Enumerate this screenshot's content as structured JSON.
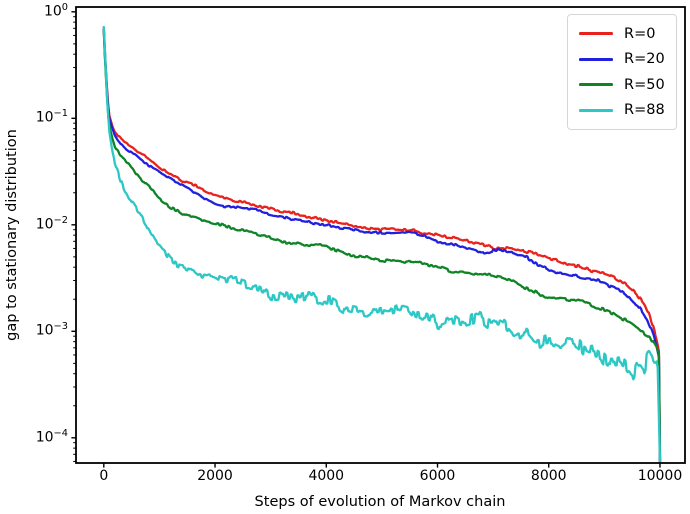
{
  "chart_data": {
    "type": "line",
    "title": "",
    "xlabel": "Steps of evolution of Markov chain",
    "ylabel": "gap to stationary distribution",
    "x_scale": "linear",
    "y_scale": "log",
    "xlim": [
      -500,
      10450
    ],
    "ylim": [
      5.8e-05,
      1.11
    ],
    "grid": false,
    "legend_position": "upper right",
    "xticks": [
      {
        "label": "0",
        "value": 0
      },
      {
        "label": "2000",
        "value": 2000
      },
      {
        "label": "4000",
        "value": 4000
      },
      {
        "label": "6000",
        "value": 6000
      },
      {
        "label": "8000",
        "value": 8000
      },
      {
        "label": "10000",
        "value": 10000
      }
    ],
    "yticks": [
      {
        "base": "10",
        "exp": "0",
        "value": 1
      },
      {
        "base": "10",
        "exp": "−1",
        "value": 0.1
      },
      {
        "base": "10",
        "exp": "−2",
        "value": 0.01
      },
      {
        "base": "10",
        "exp": "−3",
        "value": 0.001
      },
      {
        "base": "10",
        "exp": "−4",
        "value": 0.0001
      }
    ],
    "series": [
      {
        "name": "R=0",
        "key": "r0",
        "color": "#e8231d",
        "noise": [
          0.01,
          0.018
        ],
        "points": [
          [
            0,
            0.7
          ],
          [
            20,
            0.42
          ],
          [
            50,
            0.22
          ],
          [
            80,
            0.13
          ],
          [
            100,
            0.105
          ],
          [
            150,
            0.085
          ],
          [
            200,
            0.074
          ],
          [
            300,
            0.064
          ],
          [
            400,
            0.058
          ],
          [
            500,
            0.054
          ],
          [
            600,
            0.049
          ],
          [
            700,
            0.046
          ],
          [
            800,
            0.042
          ],
          [
            900,
            0.038
          ],
          [
            1000,
            0.035
          ],
          [
            1200,
            0.03
          ],
          [
            1400,
            0.026
          ],
          [
            1600,
            0.0235
          ],
          [
            1800,
            0.021
          ],
          [
            2000,
            0.019
          ],
          [
            2200,
            0.018
          ],
          [
            2400,
            0.0168
          ],
          [
            2600,
            0.016
          ],
          [
            2800,
            0.0148
          ],
          [
            3000,
            0.014
          ],
          [
            3200,
            0.0132
          ],
          [
            3400,
            0.0128
          ],
          [
            3600,
            0.0122
          ],
          [
            3800,
            0.0117
          ],
          [
            4000,
            0.0112
          ],
          [
            4200,
            0.0106
          ],
          [
            4400,
            0.0099
          ],
          [
            4600,
            0.0093
          ],
          [
            4800,
            0.0091
          ],
          [
            5000,
            0.009
          ],
          [
            5200,
            0.0094
          ],
          [
            5400,
            0.0092
          ],
          [
            5600,
            0.0088
          ],
          [
            5800,
            0.0083
          ],
          [
            6000,
            0.0078
          ],
          [
            6200,
            0.0076
          ],
          [
            6400,
            0.0073
          ],
          [
            6600,
            0.007
          ],
          [
            6800,
            0.0066
          ],
          [
            7000,
            0.0062
          ],
          [
            7200,
            0.006
          ],
          [
            7400,
            0.0058
          ],
          [
            7600,
            0.0055
          ],
          [
            7800,
            0.0052
          ],
          [
            8000,
            0.0049
          ],
          [
            8200,
            0.0046
          ],
          [
            8400,
            0.0043
          ],
          [
            8600,
            0.004
          ],
          [
            8800,
            0.0037
          ],
          [
            9000,
            0.0034
          ],
          [
            9200,
            0.0031
          ],
          [
            9400,
            0.0027
          ],
          [
            9600,
            0.0022
          ],
          [
            9700,
            0.0019
          ],
          [
            9800,
            0.0015
          ],
          [
            9880,
            0.0011
          ],
          [
            9940,
            0.00085
          ],
          [
            9980,
            0.00065
          ],
          [
            10000,
            5.8e-05
          ]
        ]
      },
      {
        "name": "R=20",
        "key": "r20",
        "color": "#2121dd",
        "noise": [
          0.01,
          0.018
        ],
        "points": [
          [
            0,
            0.68
          ],
          [
            20,
            0.4
          ],
          [
            50,
            0.21
          ],
          [
            80,
            0.12
          ],
          [
            100,
            0.098
          ],
          [
            150,
            0.08
          ],
          [
            200,
            0.068
          ],
          [
            300,
            0.058
          ],
          [
            400,
            0.052
          ],
          [
            500,
            0.048
          ],
          [
            600,
            0.044
          ],
          [
            700,
            0.04
          ],
          [
            800,
            0.037
          ],
          [
            900,
            0.034
          ],
          [
            1000,
            0.031
          ],
          [
            1200,
            0.027
          ],
          [
            1400,
            0.0235
          ],
          [
            1600,
            0.0205
          ],
          [
            1800,
            0.0178
          ],
          [
            2000,
            0.0158
          ],
          [
            2200,
            0.015
          ],
          [
            2400,
            0.0147
          ],
          [
            2600,
            0.0142
          ],
          [
            2800,
            0.0133
          ],
          [
            3000,
            0.0124
          ],
          [
            3200,
            0.0118
          ],
          [
            3400,
            0.0114
          ],
          [
            3600,
            0.011
          ],
          [
            3800,
            0.0104
          ],
          [
            4000,
            0.0099
          ],
          [
            4200,
            0.0094
          ],
          [
            4400,
            0.009
          ],
          [
            4600,
            0.0087
          ],
          [
            4800,
            0.0085
          ],
          [
            5000,
            0.0084
          ],
          [
            5200,
            0.0087
          ],
          [
            5400,
            0.0086
          ],
          [
            5600,
            0.0083
          ],
          [
            5800,
            0.0076
          ],
          [
            6000,
            0.0068
          ],
          [
            6200,
            0.0066
          ],
          [
            6400,
            0.0064
          ],
          [
            6600,
            0.0061
          ],
          [
            6800,
            0.0055
          ],
          [
            7000,
            0.0057
          ],
          [
            7200,
            0.0056
          ],
          [
            7400,
            0.0053
          ],
          [
            7600,
            0.0049
          ],
          [
            7800,
            0.0043
          ],
          [
            8000,
            0.0038
          ],
          [
            8200,
            0.0036
          ],
          [
            8400,
            0.0034
          ],
          [
            8600,
            0.0032
          ],
          [
            8800,
            0.003
          ],
          [
            9000,
            0.0028
          ],
          [
            9200,
            0.0025
          ],
          [
            9400,
            0.0022
          ],
          [
            9600,
            0.0018
          ],
          [
            9700,
            0.0015
          ],
          [
            9800,
            0.0012
          ],
          [
            9880,
            0.00095
          ],
          [
            9940,
            0.00075
          ],
          [
            9980,
            0.0006
          ],
          [
            10000,
            5.8e-05
          ]
        ]
      },
      {
        "name": "R=50",
        "key": "r50",
        "color": "#0e8427",
        "noise": [
          0.012,
          0.02
        ],
        "points": [
          [
            0,
            0.66
          ],
          [
            20,
            0.38
          ],
          [
            50,
            0.19
          ],
          [
            80,
            0.105
          ],
          [
            100,
            0.085
          ],
          [
            150,
            0.066
          ],
          [
            200,
            0.055
          ],
          [
            300,
            0.046
          ],
          [
            400,
            0.04
          ],
          [
            500,
            0.035
          ],
          [
            600,
            0.03
          ],
          [
            700,
            0.026
          ],
          [
            800,
            0.023
          ],
          [
            900,
            0.02
          ],
          [
            1000,
            0.0175
          ],
          [
            1200,
            0.0142
          ],
          [
            1400,
            0.0128
          ],
          [
            1600,
            0.0118
          ],
          [
            1800,
            0.0111
          ],
          [
            2000,
            0.0105
          ],
          [
            2200,
            0.0097
          ],
          [
            2400,
            0.009
          ],
          [
            2600,
            0.0085
          ],
          [
            2800,
            0.008
          ],
          [
            3000,
            0.0075
          ],
          [
            3200,
            0.0071
          ],
          [
            3400,
            0.0068
          ],
          [
            3600,
            0.0066
          ],
          [
            3800,
            0.0064
          ],
          [
            4000,
            0.0062
          ],
          [
            4200,
            0.0056
          ],
          [
            4400,
            0.0052
          ],
          [
            4600,
            0.0051
          ],
          [
            4800,
            0.0049
          ],
          [
            5000,
            0.0047
          ],
          [
            5200,
            0.0046
          ],
          [
            5400,
            0.0045
          ],
          [
            5600,
            0.0044
          ],
          [
            5800,
            0.0042
          ],
          [
            6000,
            0.004
          ],
          [
            6200,
            0.0038
          ],
          [
            6400,
            0.0037
          ],
          [
            6600,
            0.0035
          ],
          [
            6800,
            0.0034
          ],
          [
            7000,
            0.0033
          ],
          [
            7200,
            0.0031
          ],
          [
            7400,
            0.0028
          ],
          [
            7600,
            0.0026
          ],
          [
            7800,
            0.0023
          ],
          [
            8000,
            0.0021
          ],
          [
            8200,
            0.002
          ],
          [
            8400,
            0.00195
          ],
          [
            8600,
            0.0019
          ],
          [
            8800,
            0.0017
          ],
          [
            9000,
            0.0016
          ],
          [
            9200,
            0.00145
          ],
          [
            9400,
            0.0013
          ],
          [
            9600,
            0.0011
          ],
          [
            9700,
            0.001
          ],
          [
            9800,
            0.00088
          ],
          [
            9880,
            0.00078
          ],
          [
            9940,
            0.00068
          ],
          [
            9980,
            0.0006
          ],
          [
            10000,
            5.8e-05
          ]
        ]
      },
      {
        "name": "R=88",
        "key": "r88",
        "color": "#2dc7c5",
        "noise": [
          0.028,
          0.1
        ],
        "points": [
          [
            0,
            0.72
          ],
          [
            20,
            0.45
          ],
          [
            40,
            0.26
          ],
          [
            60,
            0.155
          ],
          [
            80,
            0.105
          ],
          [
            100,
            0.076
          ],
          [
            130,
            0.058
          ],
          [
            160,
            0.047
          ],
          [
            200,
            0.038
          ],
          [
            250,
            0.032
          ],
          [
            300,
            0.027
          ],
          [
            350,
            0.023
          ],
          [
            400,
            0.0205
          ],
          [
            450,
            0.0185
          ],
          [
            500,
            0.0165
          ],
          [
            600,
            0.0135
          ],
          [
            700,
            0.0112
          ],
          [
            800,
            0.009
          ],
          [
            900,
            0.0074
          ],
          [
            1000,
            0.0062
          ],
          [
            1100,
            0.0053
          ],
          [
            1200,
            0.0047
          ],
          [
            1350,
            0.0043
          ],
          [
            1500,
            0.004
          ],
          [
            1700,
            0.0036
          ],
          [
            2000,
            0.0032
          ],
          [
            2300,
            0.0029
          ],
          [
            2600,
            0.00265
          ],
          [
            3000,
            0.0023
          ],
          [
            3400,
            0.00215
          ],
          [
            3800,
            0.00195
          ],
          [
            4200,
            0.00175
          ],
          [
            4600,
            0.00162
          ],
          [
            5000,
            0.00155
          ],
          [
            5400,
            0.0015
          ],
          [
            5800,
            0.0014
          ],
          [
            6000,
            0.0013
          ],
          [
            6400,
            0.00127
          ],
          [
            6800,
            0.0012
          ],
          [
            7200,
            0.0011
          ],
          [
            7600,
            0.001
          ],
          [
            8000,
            0.00078
          ],
          [
            8400,
            0.00072
          ],
          [
            8800,
            0.00065
          ],
          [
            9000,
            0.0006
          ],
          [
            9200,
            0.00055
          ],
          [
            9350,
            0.00048
          ],
          [
            9500,
            0.00042
          ],
          [
            9600,
            0.0005
          ],
          [
            9700,
            0.00038
          ],
          [
            9800,
            0.0005
          ],
          [
            9900,
            0.00045
          ],
          [
            9960,
            0.0005
          ],
          [
            10000,
            5.8e-05
          ]
        ]
      }
    ]
  }
}
